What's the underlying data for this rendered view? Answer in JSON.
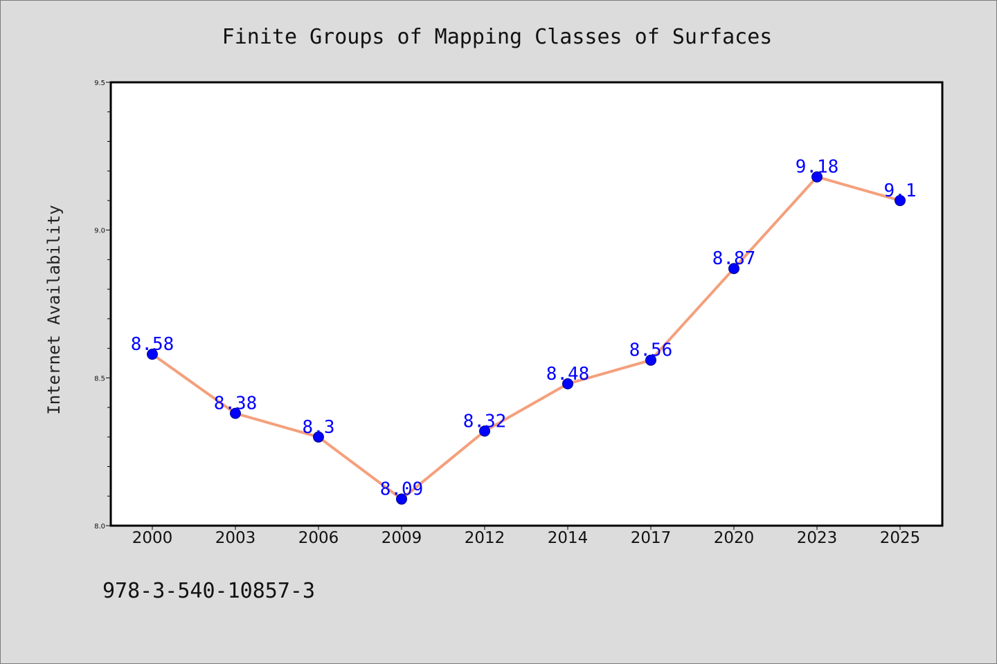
{
  "chart_data": {
    "type": "line",
    "title": "Finite Groups of Mapping Classes of Surfaces",
    "xlabel": "",
    "ylabel": "Internet Availability",
    "categories": [
      "2000",
      "2003",
      "2006",
      "2009",
      "2012",
      "2014",
      "2017",
      "2020",
      "2023",
      "2025"
    ],
    "series": [
      {
        "values": [
          8.58,
          8.38,
          8.3,
          8.09,
          8.32,
          8.48,
          8.56,
          8.87,
          9.18,
          9.1
        ],
        "labels": [
          "8.58",
          "8.38",
          "8.3",
          "8.09",
          "8.32",
          "8.48",
          "8.56",
          "8.87",
          "9.18",
          "9.1"
        ]
      }
    ],
    "ylim": [
      8.0,
      9.5
    ],
    "yticks": [
      8.0,
      8.5,
      9.0,
      9.5
    ],
    "ytick_labels": [
      "8.0",
      "8.5",
      "9.0",
      "9.5"
    ],
    "yminor_step": 0.1,
    "grid": false,
    "line_color": "#f4a07c",
    "marker_color": "#0000ff",
    "label_color": "#0000ff",
    "background_color": "#dcdcdc",
    "plot_background_color": "#ffffff"
  },
  "footer": {
    "isbn": "978-3-540-10857-3"
  }
}
